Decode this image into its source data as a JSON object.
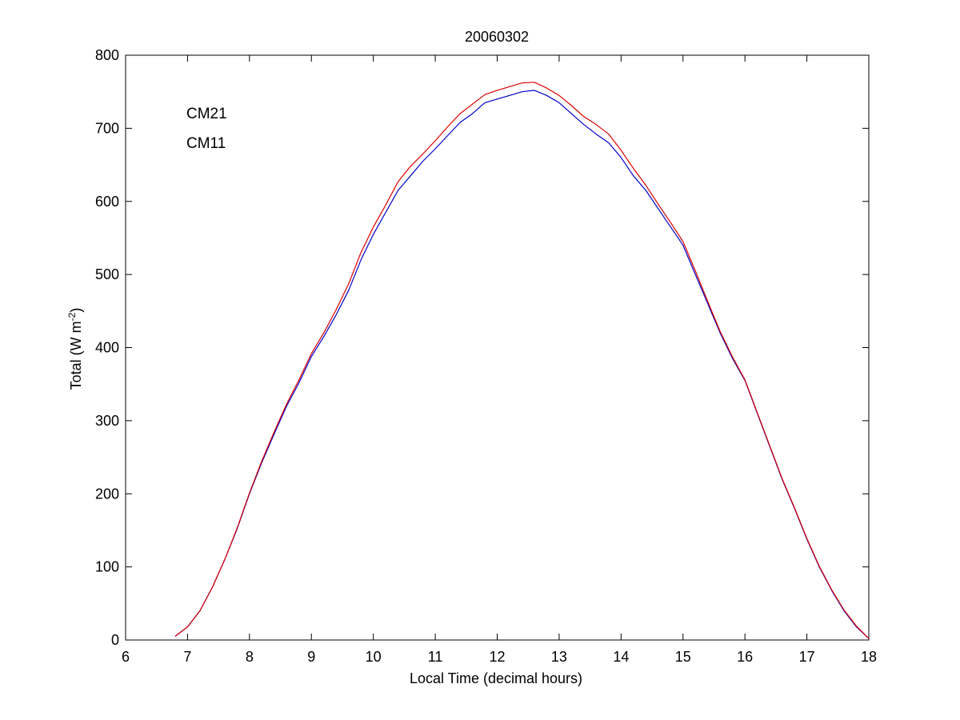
{
  "chart_data": {
    "type": "line",
    "title": "20060302",
    "xlabel": "Local Time (decimal hours)",
    "ylabel_main": "Total (W m",
    "ylabel_sup": "-2",
    "ylabel_close": ")",
    "xlim": [
      6,
      18
    ],
    "ylim": [
      0,
      800
    ],
    "xticks": [
      6,
      7,
      8,
      9,
      10,
      11,
      12,
      13,
      14,
      15,
      16,
      17,
      18
    ],
    "yticks": [
      0,
      100,
      200,
      300,
      400,
      500,
      600,
      700,
      800
    ],
    "grid": false,
    "legend_placement": "top-left",
    "series": [
      {
        "name": "CM21",
        "color": "#0000cc",
        "points": [
          [
            6.8,
            5
          ],
          [
            7.0,
            18
          ],
          [
            7.2,
            40
          ],
          [
            7.4,
            72
          ],
          [
            7.6,
            110
          ],
          [
            7.8,
            152
          ],
          [
            8.0,
            200
          ],
          [
            8.2,
            243
          ],
          [
            8.4,
            282
          ],
          [
            8.6,
            320
          ],
          [
            8.8,
            352
          ],
          [
            9.0,
            388
          ],
          [
            9.2,
            415
          ],
          [
            9.4,
            445
          ],
          [
            9.6,
            478
          ],
          [
            9.8,
            520
          ],
          [
            10.0,
            555
          ],
          [
            10.2,
            585
          ],
          [
            10.4,
            615
          ],
          [
            10.6,
            635
          ],
          [
            10.8,
            655
          ],
          [
            11.0,
            672
          ],
          [
            11.2,
            690
          ],
          [
            11.4,
            708
          ],
          [
            11.6,
            720
          ],
          [
            11.8,
            735
          ],
          [
            12.0,
            740
          ],
          [
            12.2,
            745
          ],
          [
            12.4,
            750
          ],
          [
            12.6,
            752
          ],
          [
            12.8,
            745
          ],
          [
            13.0,
            735
          ],
          [
            13.2,
            720
          ],
          [
            13.4,
            705
          ],
          [
            13.6,
            692
          ],
          [
            13.8,
            680
          ],
          [
            14.0,
            660
          ],
          [
            14.2,
            635
          ],
          [
            14.4,
            615
          ],
          [
            14.6,
            590
          ],
          [
            14.8,
            565
          ],
          [
            15.0,
            540
          ],
          [
            15.2,
            500
          ],
          [
            15.4,
            460
          ],
          [
            15.6,
            420
          ],
          [
            15.8,
            385
          ],
          [
            16.0,
            355
          ],
          [
            16.2,
            310
          ],
          [
            16.4,
            265
          ],
          [
            16.6,
            220
          ],
          [
            16.8,
            180
          ],
          [
            17.0,
            138
          ],
          [
            17.2,
            100
          ],
          [
            17.4,
            68
          ],
          [
            17.6,
            40
          ],
          [
            17.8,
            18
          ],
          [
            18.0,
            2
          ]
        ]
      },
      {
        "name": "CM11",
        "color": "#dd0000",
        "points": [
          [
            6.8,
            5
          ],
          [
            7.0,
            18
          ],
          [
            7.2,
            40
          ],
          [
            7.4,
            72
          ],
          [
            7.6,
            110
          ],
          [
            7.8,
            153
          ],
          [
            8.0,
            201
          ],
          [
            8.2,
            245
          ],
          [
            8.4,
            285
          ],
          [
            8.6,
            323
          ],
          [
            8.8,
            356
          ],
          [
            9.0,
            392
          ],
          [
            9.2,
            420
          ],
          [
            9.4,
            452
          ],
          [
            9.6,
            487
          ],
          [
            9.8,
            530
          ],
          [
            10.0,
            565
          ],
          [
            10.2,
            595
          ],
          [
            10.4,
            627
          ],
          [
            10.6,
            648
          ],
          [
            10.8,
            665
          ],
          [
            11.0,
            683
          ],
          [
            11.2,
            702
          ],
          [
            11.4,
            720
          ],
          [
            11.6,
            733
          ],
          [
            11.8,
            746
          ],
          [
            12.0,
            752
          ],
          [
            12.2,
            757
          ],
          [
            12.4,
            762
          ],
          [
            12.6,
            763
          ],
          [
            12.8,
            755
          ],
          [
            13.0,
            745
          ],
          [
            13.2,
            731
          ],
          [
            13.4,
            716
          ],
          [
            13.6,
            705
          ],
          [
            13.8,
            692
          ],
          [
            14.0,
            670
          ],
          [
            14.2,
            645
          ],
          [
            14.4,
            622
          ],
          [
            14.6,
            596
          ],
          [
            14.8,
            571
          ],
          [
            15.0,
            545
          ],
          [
            15.2,
            505
          ],
          [
            15.4,
            463
          ],
          [
            15.6,
            422
          ],
          [
            15.8,
            387
          ],
          [
            16.0,
            356
          ],
          [
            16.2,
            311
          ],
          [
            16.4,
            266
          ],
          [
            16.6,
            221
          ],
          [
            16.8,
            181
          ],
          [
            17.0,
            139
          ],
          [
            17.2,
            101
          ],
          [
            17.4,
            69
          ],
          [
            17.6,
            41
          ],
          [
            17.8,
            19
          ],
          [
            18.0,
            2
          ]
        ]
      }
    ]
  }
}
